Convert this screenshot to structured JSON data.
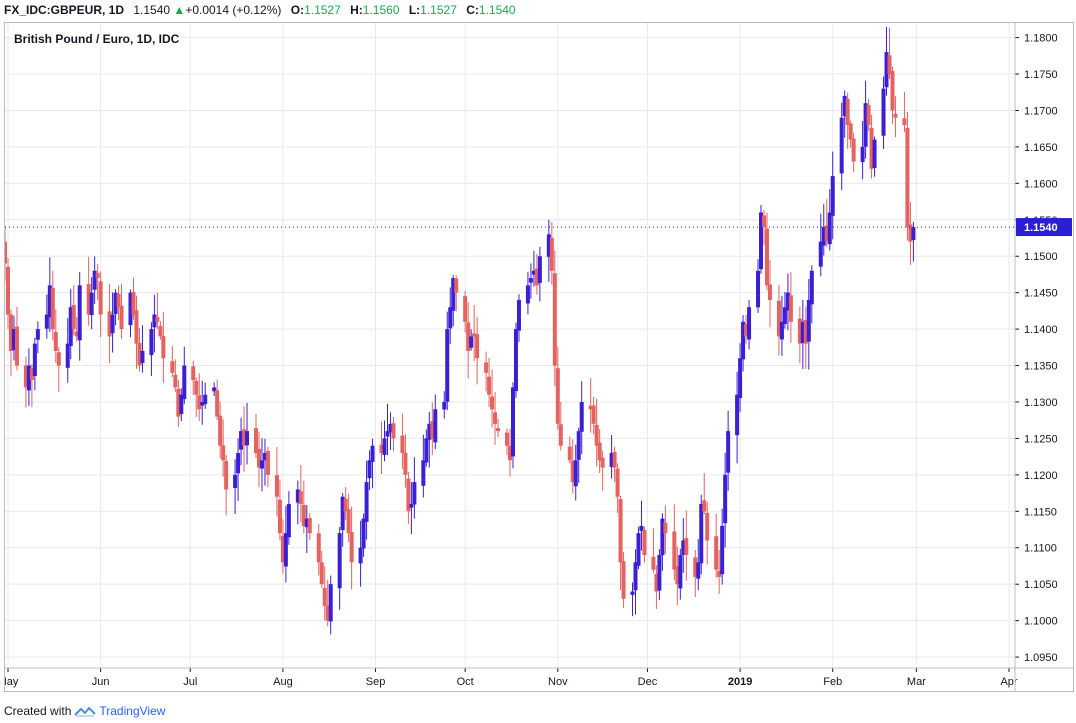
{
  "header": {
    "symbol": "FX_IDC:GBPEUR, 1D",
    "last": "1.1540",
    "change_arrow": "▲",
    "change": "+0.0014 (+0.12%)",
    "open_label": "O:",
    "open": "1.1527",
    "high_label": "H:",
    "high": "1.1560",
    "low_label": "L:",
    "low": "1.1527",
    "close_label": "C:",
    "close": "1.1540"
  },
  "footer": {
    "created_with": "Created with",
    "brand": "TradingView"
  },
  "colors": {
    "up": "#3a1fd6",
    "down": "#e4625f",
    "grid": "#e6e9ee",
    "price_label_bg": "#2b1fd6"
  },
  "chart_data": {
    "type": "candlestick",
    "title": "British Pound / Euro, 1D, IDC",
    "ylim": [
      1.0935,
      1.182
    ],
    "y_ticks": [
      1.095,
      1.1,
      1.105,
      1.11,
      1.115,
      1.12,
      1.125,
      1.13,
      1.135,
      1.14,
      1.145,
      1.15,
      1.155,
      1.16,
      1.165,
      1.17,
      1.175,
      1.18
    ],
    "x_start": "2018-04-30",
    "x_end": "2019-04-03",
    "x_tick_labels": [
      {
        "date": "2018-05-01",
        "label": "May"
      },
      {
        "date": "2018-06-01",
        "label": "Jun"
      },
      {
        "date": "2018-07-01",
        "label": "Jul"
      },
      {
        "date": "2018-08-01",
        "label": "Aug"
      },
      {
        "date": "2018-09-01",
        "label": "Sep"
      },
      {
        "date": "2018-10-01",
        "label": "Oct"
      },
      {
        "date": "2018-11-01",
        "label": "Nov"
      },
      {
        "date": "2018-12-01",
        "label": "Dec"
      },
      {
        "date": "2019-01-01",
        "label": "2019",
        "bold": true
      },
      {
        "date": "2019-02-01",
        "label": "Feb"
      },
      {
        "date": "2019-03-01",
        "label": "Mar"
      },
      {
        "date": "2019-04-01",
        "label": "Apr"
      }
    ],
    "last_price": "1.1540",
    "closes": [
      1.149,
      1.142,
      1.137,
      1.14,
      1.135,
      1.132,
      1.135,
      1.133,
      1.138,
      1.14,
      1.142,
      1.146,
      1.14,
      1.137,
      1.135,
      1.138,
      1.143,
      1.14,
      1.139,
      1.146,
      1.142,
      1.145,
      1.148,
      1.147,
      1.142,
      1.139,
      1.142,
      1.145,
      1.143,
      1.14,
      1.145,
      1.142,
      1.138,
      1.135,
      1.137,
      1.14,
      1.142,
      1.141,
      1.139,
      1.136,
      1.134,
      1.132,
      1.128,
      1.131,
      1.135,
      1.133,
      1.131,
      1.129,
      1.13,
      1.131,
      1.132,
      1.128,
      1.124,
      1.122,
      1.118,
      1.12,
      1.123,
      1.126,
      1.124,
      1.126,
      1.123,
      1.121,
      1.122,
      1.123,
      1.12,
      1.117,
      1.112,
      1.108,
      1.112,
      1.116,
      1.118,
      1.116,
      1.113,
      1.114,
      1.112,
      1.108,
      1.105,
      1.102,
      1.1,
      1.105,
      1.112,
      1.117,
      1.115,
      1.112,
      1.108,
      1.11,
      1.114,
      1.119,
      1.122,
      1.124,
      1.123,
      1.125,
      1.126,
      1.127,
      1.125,
      1.123,
      1.12,
      1.115,
      1.116,
      1.119,
      1.122,
      1.125,
      1.127,
      1.125,
      1.129,
      1.13,
      1.14,
      1.143,
      1.147,
      1.145,
      1.141,
      1.137,
      1.139,
      1.139,
      1.136,
      1.134,
      1.131,
      1.129,
      1.127,
      1.126,
      1.124,
      1.122,
      1.132,
      1.14,
      1.144,
      1.146,
      1.147,
      1.148,
      1.146,
      1.15,
      1.153,
      1.148,
      1.135,
      1.127,
      1.124,
      1.122,
      1.119,
      1.122,
      1.126,
      1.13,
      1.129,
      1.127,
      1.124,
      1.122,
      1.121,
      1.123,
      1.121,
      1.117,
      1.108,
      1.103,
      1.104,
      1.108,
      1.112,
      1.113,
      1.109,
      1.107,
      1.104,
      1.109,
      1.114,
      1.112,
      1.107,
      1.105,
      1.109,
      1.111,
      1.109,
      1.106,
      1.108,
      1.116,
      1.115,
      1.111,
      1.107,
      1.106,
      1.113,
      1.12,
      1.126,
      1.131,
      1.136,
      1.141,
      1.139,
      1.143,
      1.148,
      1.156,
      1.154,
      1.146,
      1.144,
      1.139,
      1.141,
      1.143,
      1.145,
      1.141,
      1.138,
      1.141,
      1.138,
      1.144,
      1.148,
      1.152,
      1.154,
      1.152,
      1.156,
      1.161,
      1.169,
      1.172,
      1.168,
      1.166,
      1.163,
      1.165,
      1.171,
      1.168,
      1.162,
      1.166,
      1.173,
      1.178,
      1.175,
      1.17,
      1.169,
      1.168,
      1.154,
      1.152,
      1.154
    ]
  }
}
